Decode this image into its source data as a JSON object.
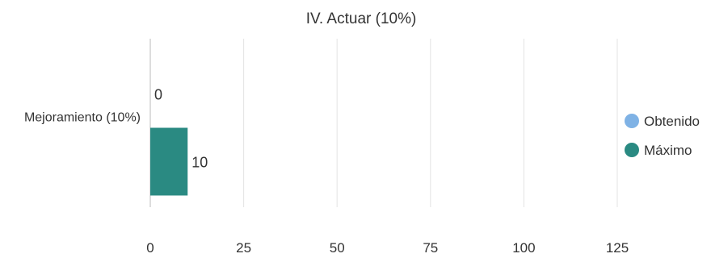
{
  "chart_data": {
    "type": "bar",
    "orientation": "horizontal",
    "title": "IV. Actuar (10%)",
    "categories": [
      "Mejoramiento (10%)"
    ],
    "series": [
      {
        "name": "Obtenido",
        "values": [
          0
        ],
        "color": "#7fb2e5"
      },
      {
        "name": "Máximo",
        "values": [
          10
        ],
        "color": "#2a8a82"
      }
    ],
    "xlim": [
      0,
      125
    ],
    "xticks": [
      0,
      25,
      50,
      75,
      100,
      125
    ],
    "grid": true,
    "data_labels": true,
    "legend": "right",
    "xlabel": "",
    "ylabel": ""
  }
}
